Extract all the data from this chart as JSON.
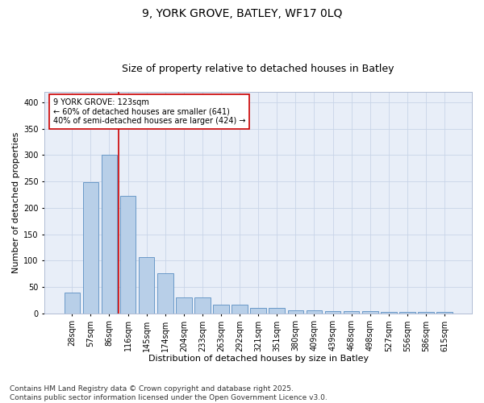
{
  "title_line1": "9, YORK GROVE, BATLEY, WF17 0LQ",
  "title_line2": "Size of property relative to detached houses in Batley",
  "xlabel": "Distribution of detached houses by size in Batley",
  "ylabel": "Number of detached properties",
  "categories": [
    "28sqm",
    "57sqm",
    "86sqm",
    "116sqm",
    "145sqm",
    "174sqm",
    "204sqm",
    "233sqm",
    "263sqm",
    "292sqm",
    "321sqm",
    "351sqm",
    "380sqm",
    "409sqm",
    "439sqm",
    "468sqm",
    "498sqm",
    "527sqm",
    "556sqm",
    "586sqm",
    "615sqm"
  ],
  "values": [
    40,
    248,
    300,
    222,
    106,
    76,
    30,
    30,
    17,
    17,
    10,
    10,
    5,
    5,
    4,
    4,
    4,
    2,
    2,
    2,
    3
  ],
  "bar_color": "#b8cfe8",
  "bar_edge_color": "#5a8fc2",
  "vline_color": "#cc0000",
  "annotation_box_text": "9 YORK GROVE: 123sqm\n← 60% of detached houses are smaller (641)\n40% of semi-detached houses are larger (424) →",
  "annotation_box_color": "#cc0000",
  "annotation_box_facecolor": "white",
  "ylim": [
    0,
    420
  ],
  "yticks": [
    0,
    50,
    100,
    150,
    200,
    250,
    300,
    350,
    400
  ],
  "grid_color": "#c8d4e8",
  "bg_color": "#e8eef8",
  "footer_text": "Contains HM Land Registry data © Crown copyright and database right 2025.\nContains public sector information licensed under the Open Government Licence v3.0.",
  "title1_fontsize": 10,
  "title2_fontsize": 9,
  "axis_label_fontsize": 8,
  "tick_fontsize": 7,
  "annotation_fontsize": 7,
  "footer_fontsize": 6.5
}
